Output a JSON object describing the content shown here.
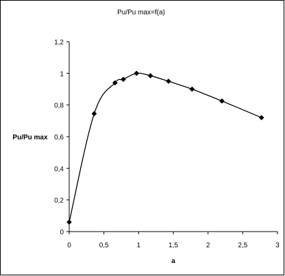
{
  "chart_data": {
    "type": "line",
    "title": "Pu/Pu max=f(a)",
    "xlabel": "a",
    "ylabel": "Pu/Pu max",
    "xlim": [
      0,
      3
    ],
    "ylim": [
      0,
      1.2
    ],
    "x_ticks": [
      "0",
      "0,5",
      "1",
      "1,5",
      "2",
      "2,5",
      "3"
    ],
    "y_ticks": [
      "0",
      "0,2",
      "0,4",
      "0,6",
      "0,8",
      "1",
      "1,2"
    ],
    "grid": false,
    "legend": "none",
    "series": [
      {
        "color": "#000000",
        "marker": "diamond",
        "smooth": true,
        "points": [
          {
            "x": 0.0,
            "y": 0.06
          },
          {
            "x": 0.36,
            "y": 0.745
          },
          {
            "x": 0.66,
            "y": 0.94
          },
          {
            "x": 0.78,
            "y": 0.962
          },
          {
            "x": 0.97,
            "y": 1.0
          },
          {
            "x": 1.17,
            "y": 0.985
          },
          {
            "x": 1.43,
            "y": 0.95
          },
          {
            "x": 1.77,
            "y": 0.9
          },
          {
            "x": 2.2,
            "y": 0.825
          },
          {
            "x": 2.77,
            "y": 0.72
          }
        ]
      }
    ]
  }
}
